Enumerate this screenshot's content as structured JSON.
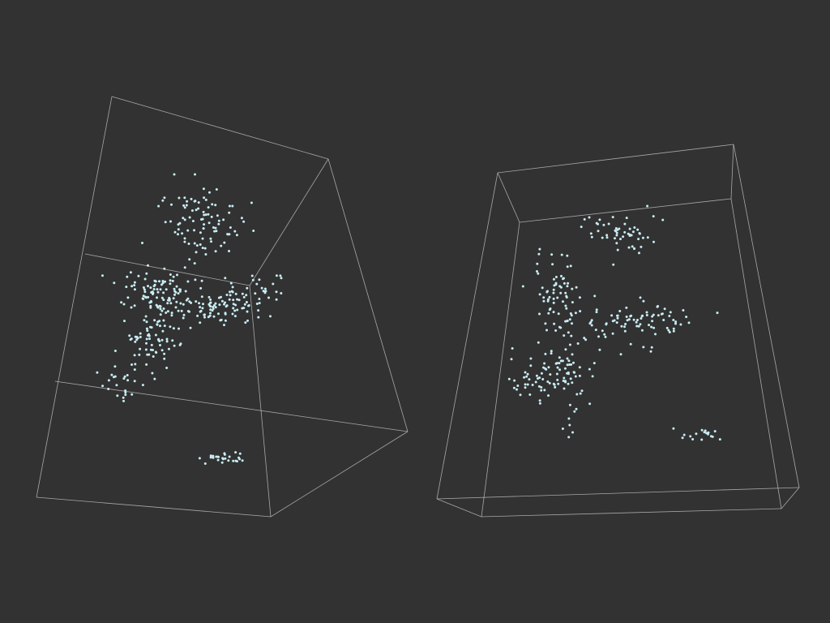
{
  "scene": {
    "background_color": "#323232",
    "edge_color": "#cfcfcf",
    "point_color": "#c9ecf3",
    "views": [
      {
        "name": "left-view",
        "point_count": 430
      },
      {
        "name": "right-view",
        "point_count": 330
      }
    ]
  }
}
